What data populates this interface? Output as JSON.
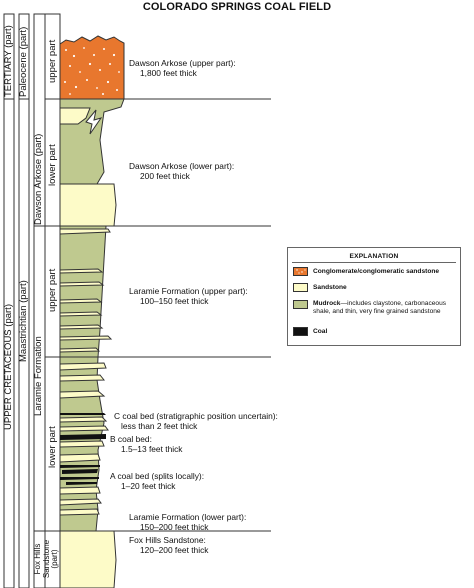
{
  "title": "COLORADO SPRINGS COAL FIELD",
  "columns": {
    "system": [
      {
        "id": "tertiary",
        "label": "TERTIARY (part)"
      },
      {
        "id": "upper-cretaceous",
        "label": "UPPER CRETACEOUS (part)"
      }
    ],
    "series": [
      {
        "id": "paleocene",
        "label": "Paleocene (part)"
      },
      {
        "id": "maastrichtian",
        "label": "Maastrichtian (part)"
      }
    ],
    "formation": [
      {
        "id": "dawson",
        "label": "Dawson Arkose (part)"
      },
      {
        "id": "laramie",
        "label": "Laramie Formation"
      },
      {
        "id": "fox-hills",
        "label": "Fox Hills Sandstone (part)"
      }
    ],
    "member": [
      {
        "id": "dawson-upper",
        "label": "upper part"
      },
      {
        "id": "dawson-lower",
        "label": "lower part"
      },
      {
        "id": "laramie-upper",
        "label": "upper part"
      },
      {
        "id": "laramie-lower",
        "label": "lower part"
      }
    ]
  },
  "units": [
    {
      "id": "dawson-upper",
      "lines": [
        "Dawson Arkose (upper part):",
        "1,800 feet thick"
      ]
    },
    {
      "id": "dawson-lower",
      "lines": [
        "Dawson Arkose (lower part):",
        "200 feet thick"
      ]
    },
    {
      "id": "laramie-upper",
      "lines": [
        "Laramie Formation (upper part):",
        "100–150 feet thick"
      ]
    },
    {
      "id": "c-coal",
      "lines": [
        "C coal bed (stratigraphic position uncertain):",
        "less than 2 feet thick"
      ]
    },
    {
      "id": "b-coal",
      "lines": [
        "B coal bed:",
        "1.5–13 feet thick"
      ]
    },
    {
      "id": "a-coal",
      "lines": [
        "A coal bed (splits locally):",
        "1–20 feet thick"
      ]
    },
    {
      "id": "laramie-lower",
      "lines": [
        "Laramie Formation (lower part):",
        "150–200 feet thick"
      ]
    },
    {
      "id": "fox-hills",
      "lines": [
        "Fox Hills Sandstone:",
        "120–200 feet thick"
      ]
    }
  ],
  "legend": {
    "title": "EXPLANATION",
    "items": [
      {
        "id": "conglomerate",
        "bold": "Conglomerate/conglomeratic sandstone",
        "rest": "",
        "color": "#e8772e"
      },
      {
        "id": "sandstone",
        "bold": "Sandstone",
        "rest": "",
        "color": "#fdfbc8"
      },
      {
        "id": "mudrock",
        "bold": "Mudrock",
        "rest": "—includes claystone, carbonaceous shale, and thin, very fine grained sandstone",
        "color": "#bfc98f"
      },
      {
        "id": "coal",
        "bold": "Coal",
        "rest": "",
        "color": "#111111"
      }
    ]
  },
  "colors": {
    "conglomerate": "#e8772e",
    "sandstone": "#fdfbc8",
    "mudrock": "#bfc98f",
    "coal": "#111111",
    "line": "#333333"
  }
}
